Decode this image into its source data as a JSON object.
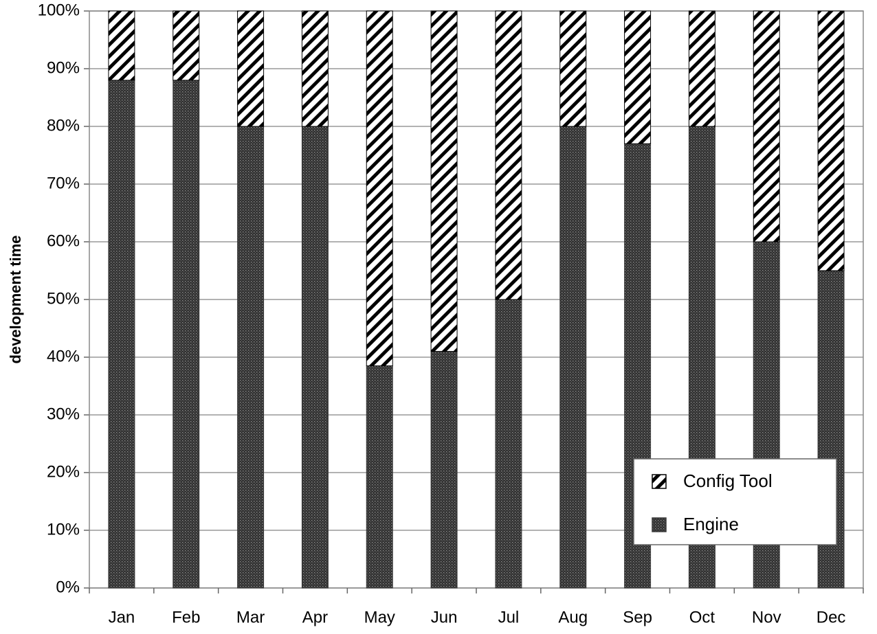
{
  "chart_data": {
    "type": "stacked_bar",
    "y_label": "development time",
    "categories": [
      "Jan",
      "Feb",
      "Mar",
      "Apr",
      "May",
      "Jun",
      "Jul",
      "Aug",
      "Sep",
      "Oct",
      "Nov",
      "Dec"
    ],
    "series": [
      {
        "name": "Engine",
        "color": "#3a3a3a",
        "pattern": "dots",
        "values": [
          88,
          88,
          80,
          80,
          38.5,
          41,
          50,
          80,
          77,
          80,
          60,
          55
        ]
      },
      {
        "name": "Config Tool",
        "color": "#000000",
        "pattern": "hatch",
        "values": [
          12,
          12,
          20,
          20,
          61.5,
          59,
          50,
          20,
          23,
          20,
          40,
          45
        ]
      }
    ],
    "ylim": [
      0,
      100
    ],
    "yticks": [
      {
        "value": 0,
        "label": "0%"
      },
      {
        "value": 10,
        "label": "10%"
      },
      {
        "value": 20,
        "label": "20%"
      },
      {
        "value": 30,
        "label": "30%"
      },
      {
        "value": 40,
        "label": "40%"
      },
      {
        "value": 50,
        "label": "50%"
      },
      {
        "value": 60,
        "label": "60%"
      },
      {
        "value": 70,
        "label": "70%"
      },
      {
        "value": 80,
        "label": "80%"
      },
      {
        "value": 90,
        "label": "90%"
      },
      {
        "value": 100,
        "label": "100%"
      }
    ],
    "grid": true,
    "legend": "lower right"
  }
}
